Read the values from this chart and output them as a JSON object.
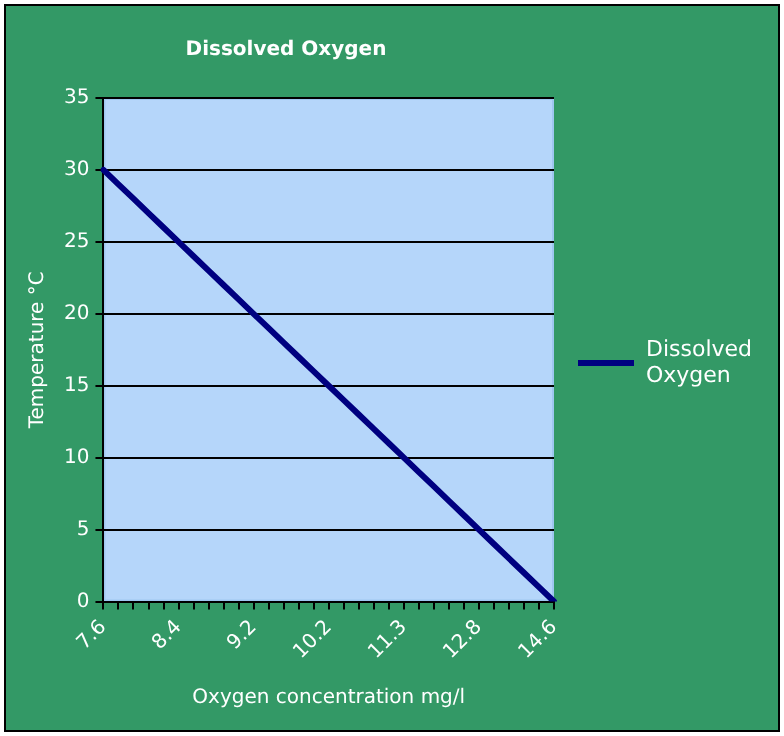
{
  "chart_data": {
    "type": "line",
    "title": "Dissolved Oxygen",
    "xlabel": "Oxygen concentration mg/l",
    "ylabel": "Temperature °C",
    "categories": [
      "7.6",
      null,
      null,
      null,
      null,
      "8.4",
      null,
      null,
      null,
      null,
      "9.2",
      null,
      null,
      null,
      null,
      "10.2",
      null,
      null,
      null,
      null,
      "11.3",
      null,
      null,
      null,
      null,
      "12.8",
      null,
      null,
      null,
      null,
      "14.6"
    ],
    "series": [
      {
        "name": "Dissolved Oxygen",
        "color": "#000080",
        "values": [
          30,
          29,
          28,
          27,
          26,
          25,
          24,
          23,
          22,
          21,
          20,
          19,
          18,
          17,
          16,
          15,
          14,
          13,
          12,
          11,
          10,
          9,
          8,
          7,
          6,
          5,
          4,
          3,
          2,
          1,
          0
        ]
      }
    ],
    "ylim": [
      0,
      35
    ],
    "yticks": [
      0,
      5,
      10,
      15,
      20,
      25,
      30,
      35
    ],
    "grid": "y",
    "legend": "right",
    "marker": "none",
    "line_style": "solid"
  }
}
